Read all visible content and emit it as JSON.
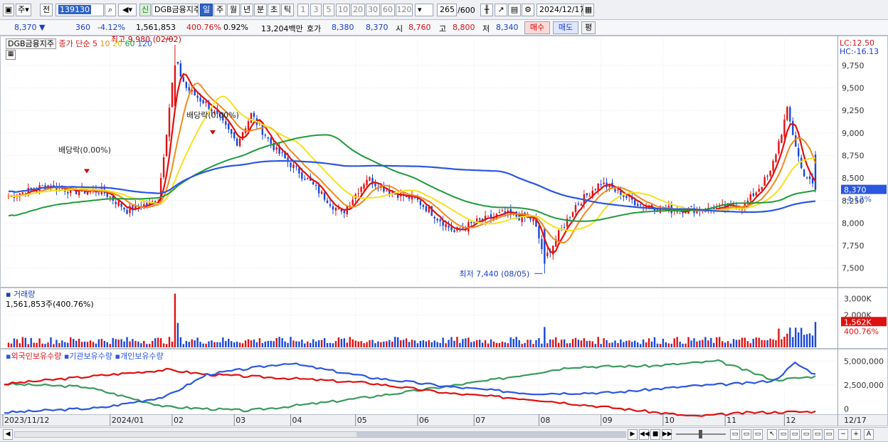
{
  "toolbar": {
    "period_type": "주",
    "prev_label": "전",
    "code": "139130",
    "name": "DGB금융지주",
    "badge_new": "신",
    "periods": [
      "일",
      "주",
      "월",
      "년",
      "분",
      "초",
      "틱"
    ],
    "selected_period": "일",
    "minute_options": [
      "1",
      "3",
      "5",
      "10",
      "20",
      "30",
      "60",
      "120"
    ],
    "count": "265",
    "count_total": "/600",
    "date": "2024/12/17"
  },
  "quote": {
    "price": "8,370",
    "change": "360",
    "change_pct": "-4.12%",
    "volume": "1,561,853",
    "volume_ratio": "400.76%",
    "turnover": "0.92%",
    "amount": "13,204백만",
    "hoga_label": "호가",
    "ask": "8,380",
    "bid": "8,370",
    "open_label": "시",
    "open": "8,760",
    "high_label": "고",
    "high": "8,800",
    "low_label": "저",
    "low": "8,340",
    "buy_button": "매수",
    "sell_button": "매도",
    "eval_button": "평"
  },
  "legend": {
    "name": "DGB금융지주",
    "ma_label": "종가 단순",
    "ma_periods": [
      "5",
      "10",
      "20",
      "60",
      "120"
    ],
    "lc": "LC:12.50",
    "hc": "HC:-16.13"
  },
  "colors": {
    "up": "#e01010",
    "down": "#1846d8",
    "ma5": "#e01010",
    "ma10": "#f08a1c",
    "ma20": "#f5e11e",
    "ma60": "#1f9a3a",
    "ma120": "#2b56e0",
    "foreign": "#2b56e0",
    "institution": "#e01010",
    "individual": "#3a9a5e"
  },
  "annotations": {
    "high": "최고 9,980 (02/02)",
    "low": "최저 7,440 (08/05)",
    "dividend1": "배당락(0.00%)",
    "dividend2": "배당락(0.00%)"
  },
  "price_panel": {
    "yticks": [
      7500,
      7750,
      8000,
      8250,
      8500,
      8750,
      9000,
      9250,
      9500,
      9750
    ],
    "ytick_labels": [
      "7,500",
      "7,750",
      "8,000",
      "8,250",
      "8,500",
      "8,750",
      "9,000",
      "9,250",
      "9,500",
      "9,750"
    ],
    "current_price_label": "8,370",
    "current_change_label": "-4.12%"
  },
  "volume_panel": {
    "title": "거래량",
    "value_label": "1,561,853주(400.76%)",
    "ytick_labels": [
      "2,000K",
      "3,000K"
    ],
    "current_label": "1,562K",
    "current_pct_label": "400.76%"
  },
  "holder_panel": {
    "titles": [
      "외국인보유수량",
      "기관보유수량",
      "개인보유수량"
    ],
    "ytick_labels": [
      "0",
      "2,500,000",
      "5,000,000"
    ]
  },
  "x_axis": {
    "labels": [
      "2023/11/12",
      "2024/01",
      "02",
      "03",
      "04",
      "05",
      "06",
      "07",
      "08",
      "09",
      "10",
      "11",
      "12",
      "12/17"
    ]
  },
  "chart_data": {
    "type": "candlestick",
    "title": "DGB금융지주",
    "period": "일",
    "range": [
      "2023/11/12",
      "2024/12/17"
    ],
    "ylim": [
      7300,
      10050
    ],
    "series_ma": [
      "5",
      "10",
      "20",
      "60",
      "120"
    ],
    "price_anchors": [
      {
        "date": "2023-11-13",
        "close": 8300
      },
      {
        "date": "2023-12-01",
        "close": 8420
      },
      {
        "date": "2023-12-15",
        "close": 8350
      },
      {
        "date": "2023-12-28",
        "close": 8360
      },
      {
        "date": "2024-01-10",
        "close": 8140
      },
      {
        "date": "2024-01-25",
        "close": 8250
      },
      {
        "date": "2024-02-02",
        "close": 9800
      },
      {
        "date": "2024-02-08",
        "close": 9500
      },
      {
        "date": "2024-02-20",
        "close": 9300
      },
      {
        "date": "2024-03-05",
        "close": 8900
      },
      {
        "date": "2024-03-12",
        "close": 9200
      },
      {
        "date": "2024-03-25",
        "close": 8800
      },
      {
        "date": "2024-04-10",
        "close": 8450
      },
      {
        "date": "2024-04-25",
        "close": 8100
      },
      {
        "date": "2024-05-08",
        "close": 8500
      },
      {
        "date": "2024-05-20",
        "close": 8350
      },
      {
        "date": "2024-06-03",
        "close": 8250
      },
      {
        "date": "2024-06-20",
        "close": 7900
      },
      {
        "date": "2024-07-01",
        "close": 8000
      },
      {
        "date": "2024-07-15",
        "close": 8100
      },
      {
        "date": "2024-07-30",
        "close": 8050
      },
      {
        "date": "2024-08-05",
        "close": 7600
      },
      {
        "date": "2024-08-20",
        "close": 8200
      },
      {
        "date": "2024-09-02",
        "close": 8450
      },
      {
        "date": "2024-09-20",
        "close": 8200
      },
      {
        "date": "2024-10-05",
        "close": 8150
      },
      {
        "date": "2024-10-25",
        "close": 8150
      },
      {
        "date": "2024-11-12",
        "close": 8200
      },
      {
        "date": "2024-11-25",
        "close": 8550
      },
      {
        "date": "2024-12-03",
        "close": 9250
      },
      {
        "date": "2024-12-10",
        "close": 8600
      },
      {
        "date": "2024-12-17",
        "close": 8370
      }
    ],
    "high_point": {
      "date": "2024-02-02",
      "value": 9980
    },
    "low_point": {
      "date": "2024-08-05",
      "value": 7440
    },
    "last": {
      "date": "2024-12-17",
      "open": 8760,
      "high": 8800,
      "low": 8340,
      "close": 8370,
      "volume": 1561853
    },
    "volume_ylim": [
      0,
      3500000
    ],
    "holders_ylim": [
      -500000,
      6000000
    ],
    "holders": {
      "foreign": [
        {
          "t": 0,
          "v": -400000
        },
        {
          "t": 0.12,
          "v": 100000
        },
        {
          "t": 0.2,
          "v": 1300000
        },
        {
          "t": 0.25,
          "v": 3600000
        },
        {
          "t": 0.35,
          "v": 4800000
        },
        {
          "t": 0.45,
          "v": 3300000
        },
        {
          "t": 0.55,
          "v": 2300000
        },
        {
          "t": 0.65,
          "v": 1600000
        },
        {
          "t": 0.75,
          "v": 1700000
        },
        {
          "t": 0.85,
          "v": 2400000
        },
        {
          "t": 0.92,
          "v": 2700000
        },
        {
          "t": 0.95,
          "v": 3000000
        },
        {
          "t": 0.975,
          "v": 4800000
        },
        {
          "t": 1.0,
          "v": 3600000
        }
      ],
      "institution": [
        {
          "t": 0,
          "v": 2600000
        },
        {
          "t": 0.12,
          "v": 3500000
        },
        {
          "t": 0.2,
          "v": 4100000
        },
        {
          "t": 0.25,
          "v": 3600000
        },
        {
          "t": 0.35,
          "v": 3200000
        },
        {
          "t": 0.45,
          "v": 2700000
        },
        {
          "t": 0.55,
          "v": 1600000
        },
        {
          "t": 0.65,
          "v": 1000000
        },
        {
          "t": 0.75,
          "v": 100000
        },
        {
          "t": 0.85,
          "v": -800000
        },
        {
          "t": 0.92,
          "v": -400000
        },
        {
          "t": 1.0,
          "v": -300000
        }
      ],
      "individual": [
        {
          "t": 0,
          "v": 2600000
        },
        {
          "t": 0.1,
          "v": 2300000
        },
        {
          "t": 0.2,
          "v": 200000
        },
        {
          "t": 0.3,
          "v": -200000
        },
        {
          "t": 0.4,
          "v": 700000
        },
        {
          "t": 0.5,
          "v": 1800000
        },
        {
          "t": 0.6,
          "v": 3000000
        },
        {
          "t": 0.7,
          "v": 4400000
        },
        {
          "t": 0.8,
          "v": 4500000
        },
        {
          "t": 0.88,
          "v": 5000000
        },
        {
          "t": 0.95,
          "v": 3000000
        },
        {
          "t": 1.0,
          "v": 3400000
        }
      ]
    }
  }
}
